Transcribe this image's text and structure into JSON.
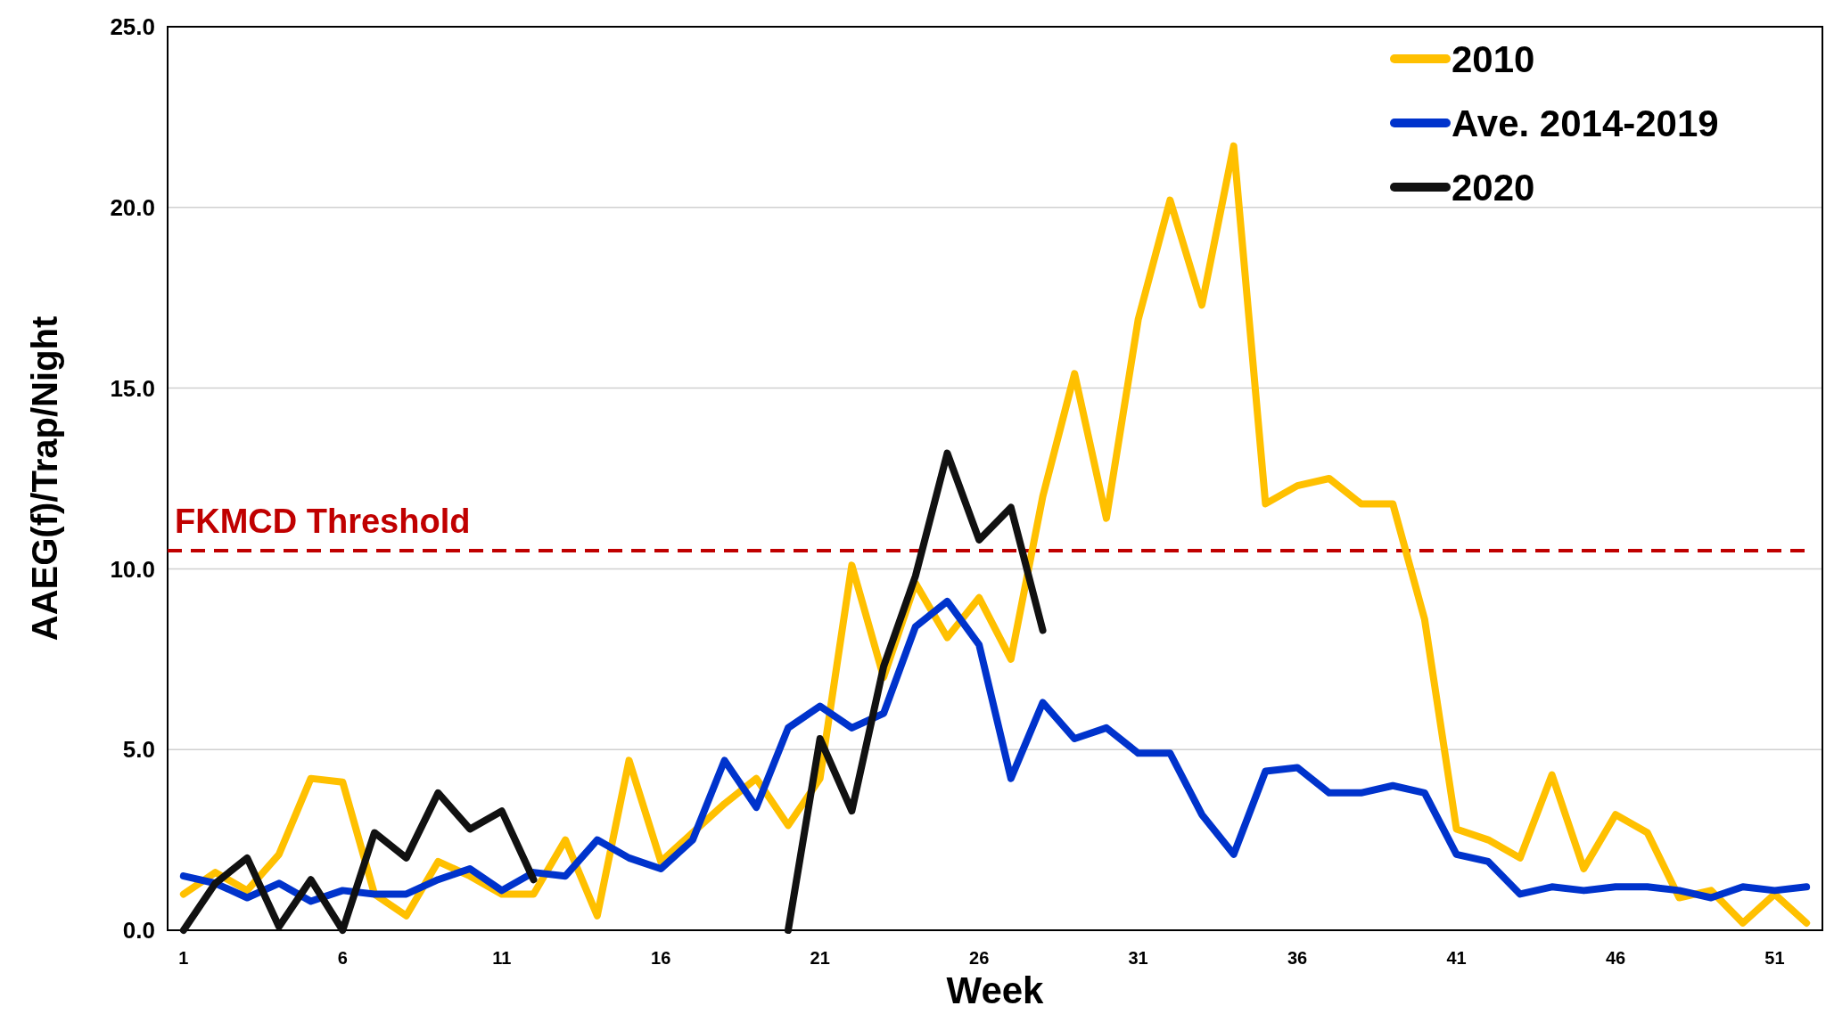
{
  "chart_data": {
    "type": "line",
    "xlabel": "Week",
    "ylabel": "AAEG(f)/Trap/Night",
    "x": [
      1,
      2,
      3,
      4,
      5,
      6,
      7,
      8,
      9,
      10,
      11,
      12,
      13,
      14,
      15,
      16,
      17,
      18,
      19,
      20,
      21,
      22,
      23,
      24,
      25,
      26,
      27,
      28,
      29,
      30,
      31,
      32,
      33,
      34,
      35,
      36,
      37,
      38,
      39,
      40,
      41,
      42,
      43,
      44,
      45,
      46,
      47,
      48,
      49,
      50,
      51,
      52
    ],
    "series": [
      {
        "name": "2010",
        "color": "#ffc000",
        "values": [
          1.0,
          1.6,
          1.1,
          2.1,
          4.2,
          4.1,
          1.0,
          0.4,
          1.9,
          1.5,
          1.0,
          1.0,
          2.5,
          0.4,
          4.7,
          1.9,
          2.7,
          3.5,
          4.2,
          2.9,
          4.2,
          10.1,
          7.0,
          9.6,
          8.1,
          9.2,
          7.5,
          12.0,
          15.4,
          11.4,
          16.9,
          20.2,
          17.3,
          21.7,
          11.8,
          12.3,
          12.5,
          11.8,
          11.8,
          8.6,
          2.8,
          2.5,
          2.0,
          4.3,
          1.7,
          3.2,
          2.7,
          0.9,
          1.1,
          0.2,
          1.0,
          0.2
        ]
      },
      {
        "name": "Ave. 2014-2019",
        "color": "#0033cc",
        "values": [
          1.5,
          1.3,
          0.9,
          1.3,
          0.8,
          1.1,
          1.0,
          1.0,
          1.4,
          1.7,
          1.1,
          1.6,
          1.5,
          2.5,
          2.0,
          1.7,
          2.5,
          4.7,
          3.4,
          5.6,
          6.2,
          5.6,
          6.0,
          8.4,
          9.1,
          7.9,
          4.2,
          6.3,
          5.3,
          5.6,
          4.9,
          4.9,
          3.2,
          2.1,
          4.4,
          4.5,
          3.8,
          3.8,
          4.0,
          3.8,
          2.1,
          1.9,
          1.0,
          1.2,
          1.1,
          1.2,
          1.2,
          1.1,
          0.9,
          1.2,
          1.1,
          1.2
        ]
      },
      {
        "name": "2020",
        "color": "#111111",
        "values": [
          0,
          1.3,
          2.0,
          0.1,
          1.4,
          0,
          2.7,
          2.0,
          3.8,
          2.8,
          3.3,
          1.4,
          null,
          null,
          null,
          null,
          null,
          null,
          null,
          0,
          5.3,
          3.3,
          7.3,
          9.8,
          13.2,
          10.8,
          11.7,
          8.3,
          null,
          null,
          null,
          null,
          null,
          null,
          null,
          null,
          null,
          null,
          null,
          null,
          null,
          null,
          null,
          null,
          null,
          null,
          null,
          null,
          null,
          null,
          null,
          null
        ]
      }
    ],
    "xlim": [
      0.5,
      52.5
    ],
    "xticks": [
      1,
      6,
      11,
      16,
      21,
      26,
      31,
      36,
      41,
      46,
      51
    ],
    "ylim": [
      0,
      25
    ],
    "yticks": [
      {
        "value": 0,
        "label": "0.0"
      },
      {
        "value": 5,
        "label": "5.0"
      },
      {
        "value": 10,
        "label": "10.0"
      },
      {
        "value": 15,
        "label": "15.0"
      },
      {
        "value": 20,
        "label": "20.0"
      },
      {
        "value": 25,
        "label": "25.0"
      }
    ],
    "ref_lines": [
      {
        "axis": "y",
        "value": 10.5,
        "label": "FKMCD Threshold",
        "color": "#c00000",
        "line_style": "dashed"
      }
    ],
    "grid": "y",
    "legend": "top right",
    "marker": "none",
    "line_style": "solid"
  }
}
